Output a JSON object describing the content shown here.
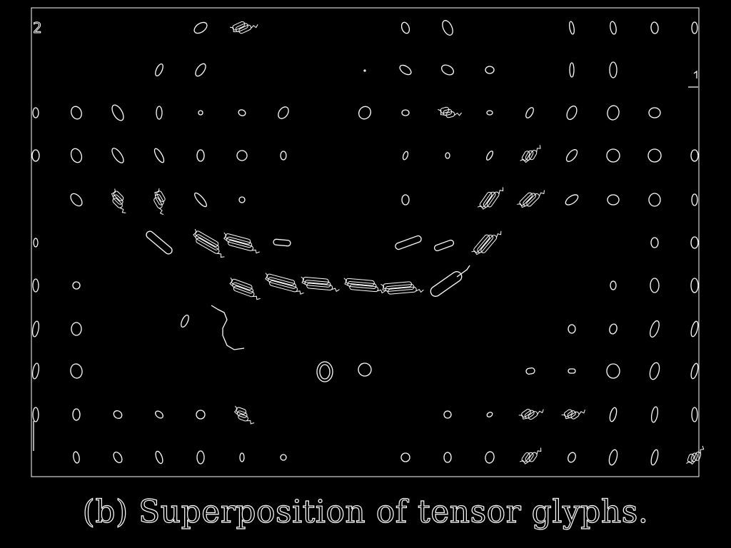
{
  "caption": "(b) Superposition of tensor glyphs.",
  "figure_label": "2",
  "colors": {
    "background": "#000000",
    "stroke": "#ffffff"
  },
  "grid": {
    "rows": 11,
    "cols": 17
  },
  "glyph_kinds": [
    "ellipse",
    "capsule",
    "cluster",
    "blob"
  ]
}
